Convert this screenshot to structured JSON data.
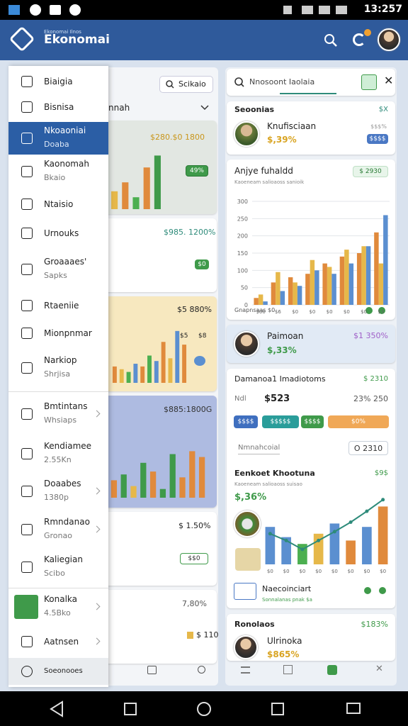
{
  "status_bar": {
    "time": "13:257"
  },
  "app_bar": {
    "subtitle": "Ekonomai Ilnos",
    "title": "Ekonomai"
  },
  "drawer": {
    "active_item": 2,
    "items": [
      {
        "title": "Biaigia"
      },
      {
        "title": "Bisnisa"
      },
      {
        "title": "Nkoaoniai",
        "subtitle": "Doaba"
      },
      {
        "title": "Kaonomah",
        "subtitle": "Bkaio"
      },
      {
        "title": "Ntaisio"
      },
      {
        "title": "Urnouks"
      },
      {
        "title": "Groaaaes'",
        "subtitle": "Sapks"
      },
      {
        "title": "Rtaeniie"
      },
      {
        "title": "Mionpnmar"
      },
      {
        "title": "Narkiop",
        "subtitle": "Shrjisa"
      },
      {
        "title": "Bmtintans",
        "subtitle": "Whsiaps",
        "chevron": true
      },
      {
        "title": "Kendiamee",
        "subtitle": "2.55Kn"
      },
      {
        "title": "Doaabes",
        "subtitle": "1380p",
        "chevron": true
      },
      {
        "title": "Rmndanao",
        "subtitle": "Gronao",
        "chevron": true
      },
      {
        "title": "Kaliegian",
        "subtitle": "Scibo"
      },
      {
        "title": "Konalka",
        "subtitle": "4.5Bko",
        "chevron": true,
        "accent": true
      },
      {
        "title": "Aatnsen",
        "chevron": true
      },
      {
        "title": "Soeonooes"
      }
    ]
  },
  "middle": {
    "search": "Scikaio",
    "header": "nnah",
    "cards": [
      {
        "amount": "$280.$0 1800",
        "pill": "49%",
        "chart": {
          "type": "bar",
          "ylim": [
            0,
            100
          ],
          "values": [
            30,
            45,
            20,
            70,
            90
          ],
          "colors": [
            "#e6b84a",
            "#e08a3c",
            "#4caf50",
            "#e08a3c",
            "#3f9a4a"
          ]
        }
      },
      {
        "amount": "$985. 1200%",
        "pill": "$0"
      },
      {
        "amount": "$5 880%",
        "labels": [
          "$5",
          "$8"
        ],
        "chart": {
          "type": "bar",
          "ylim": [
            0,
            100
          ],
          "values": [
            30,
            25,
            20,
            35,
            30,
            50,
            40,
            75,
            45,
            95,
            70
          ],
          "colors": [
            "#e08a3c",
            "#e6b84a",
            "#4caf50",
            "#5b8fd0",
            "#e08a3c",
            "#4caf50",
            "#5b8fd0",
            "#e08a3c",
            "#e6b84a",
            "#5b8fd0",
            "#e08a3c"
          ]
        }
      },
      {
        "amount": "$885:1800G",
        "chart": {
          "type": "bar",
          "ylim": [
            0,
            100
          ],
          "values": [
            30,
            40,
            20,
            60,
            45,
            15,
            75,
            35,
            80,
            70
          ],
          "colors": [
            "#e08a3c",
            "#3f9a4a",
            "#e6b84a",
            "#3f9a4a",
            "#e08a3c",
            "#3f9a4a",
            "#3f9a4a",
            "#e08a3c",
            "#e08a3c",
            "#e08a3c"
          ]
        }
      },
      {
        "amount": "$ 1.50%",
        "pill": "$$0"
      },
      {
        "amount": "7,80%",
        "value": "$ 110"
      }
    ]
  },
  "right": {
    "search": "Nnosoont Iaolaia",
    "card1": {
      "title": "Seoonias",
      "tag": "$X",
      "name": "Knufisciaan",
      "value": "$,39%",
      "note": "$$$%",
      "pill": "$$$$"
    },
    "card2": {
      "title": "Anjye fuhaldd",
      "pill": "$ 2930",
      "subtitle": "Kaoeneam salioaoss sanioik",
      "footer": "Gnapnsaas $0",
      "chart": {
        "type": "grouped",
        "ylim": [
          0,
          300
        ],
        "yticks": [
          0,
          50,
          100,
          150,
          200,
          250,
          300
        ],
        "categories": [
          "$00",
          "$6",
          "$0",
          "$0",
          "$0",
          "$0",
          "$0",
          "$3"
        ],
        "series": [
          {
            "color": "#e08a3c",
            "values": [
              20,
              65,
              80,
              90,
              120,
              140,
              150,
              210
            ]
          },
          {
            "color": "#e6b84a",
            "values": [
              30,
              95,
              65,
              130,
              110,
              160,
              170,
              120
            ]
          },
          {
            "color": "#5b8fd0",
            "values": [
              10,
              40,
              55,
              100,
              90,
              120,
              170,
              260
            ]
          }
        ]
      }
    },
    "card3": {
      "name": "Paimoan",
      "value": "$,33%",
      "tag": "$1 350%"
    },
    "card4": {
      "title": "Damanoa1 Imadiotoms",
      "tag": "$ 2310",
      "label": "Ndl",
      "amount": "$523",
      "stat": "23% 250",
      "buttons": [
        "$$$$",
        "$$$$$",
        "$$$$",
        "$0%"
      ],
      "tab": "Nmnahcoial",
      "pill": "O 2310",
      "section": "Eenkoet Khootuna",
      "section_tag": "$9$",
      "section_sub": "Kaoeneam salioaoss suisao",
      "big": "$,36%",
      "footer": "Naecoinciart",
      "footer_sub": "Sonnalanas pnak $a",
      "chart": {
        "type": "combo",
        "ylim": [
          0,
          100
        ],
        "categories": [
          "$0",
          "$0",
          "$0",
          "$0",
          "$0",
          "$0",
          "$0",
          "$0"
        ],
        "values": [
          55,
          40,
          30,
          45,
          60,
          35,
          55,
          85
        ],
        "colors": [
          "#5b8fd0",
          "#5b8fd0",
          "#4caf50",
          "#e6b84a",
          "#5b8fd0",
          "#e08a3c",
          "#5b8fd0",
          "#e08a3c"
        ],
        "line": {
          "color": "#2e8b7a",
          "values": [
            45,
            35,
            22,
            35,
            48,
            62,
            78,
            95
          ]
        }
      }
    },
    "card5": {
      "title": "Ronolaos",
      "tag": "$183%",
      "name": "Ulrinoka",
      "value": "$865%"
    }
  }
}
